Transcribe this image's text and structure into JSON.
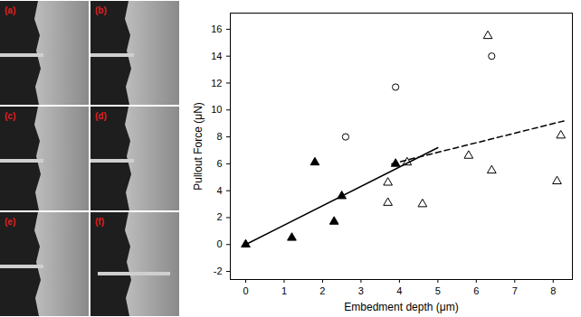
{
  "images": {
    "panel_labels": [
      "(a)",
      "(b)",
      "(c)",
      "(d)",
      "(e)",
      "(f)"
    ]
  },
  "chart_data": {
    "type": "scatter",
    "x_label": "Embedment depth (μm)",
    "y_label": "Pullout Force (μN)",
    "xlim": [
      -0.4,
      8.5
    ],
    "ylim": [
      -2.6,
      17.2
    ],
    "xticks": [
      0,
      1,
      2,
      3,
      4,
      5,
      6,
      7,
      8
    ],
    "yticks": [
      -2,
      0,
      2,
      4,
      6,
      8,
      10,
      12,
      14,
      16
    ],
    "grid": false,
    "series": [
      {
        "type": "scatter",
        "marker": "filled_triangle",
        "color": "#000000",
        "x": [
          0,
          1.2,
          1.8,
          2.3,
          2.5,
          3.9
        ],
        "values": [
          0,
          0.5,
          6.1,
          1.7,
          3.6,
          6.0
        ]
      },
      {
        "type": "scatter",
        "marker": "open_triangle",
        "color": "#000000",
        "x": [
          3.7,
          3.7,
          4.2,
          4.6,
          5.8,
          6.3,
          6.4,
          8.1,
          8.2
        ],
        "values": [
          4.6,
          3.1,
          6.1,
          3.0,
          6.6,
          15.5,
          5.5,
          4.7,
          8.1
        ]
      },
      {
        "type": "scatter",
        "marker": "open_circle",
        "color": "#000000",
        "x": [
          2.6,
          3.9,
          6.4
        ],
        "values": [
          8.0,
          11.7,
          14.0
        ]
      },
      {
        "type": "line",
        "line_style": "solid",
        "color": "#000000",
        "x": [
          0,
          5.0
        ],
        "values": [
          0,
          7.2
        ]
      },
      {
        "type": "line",
        "line_style": "dashed",
        "color": "#000000",
        "x": [
          3.8,
          8.3
        ],
        "values": [
          6.0,
          9.2
        ]
      }
    ]
  }
}
